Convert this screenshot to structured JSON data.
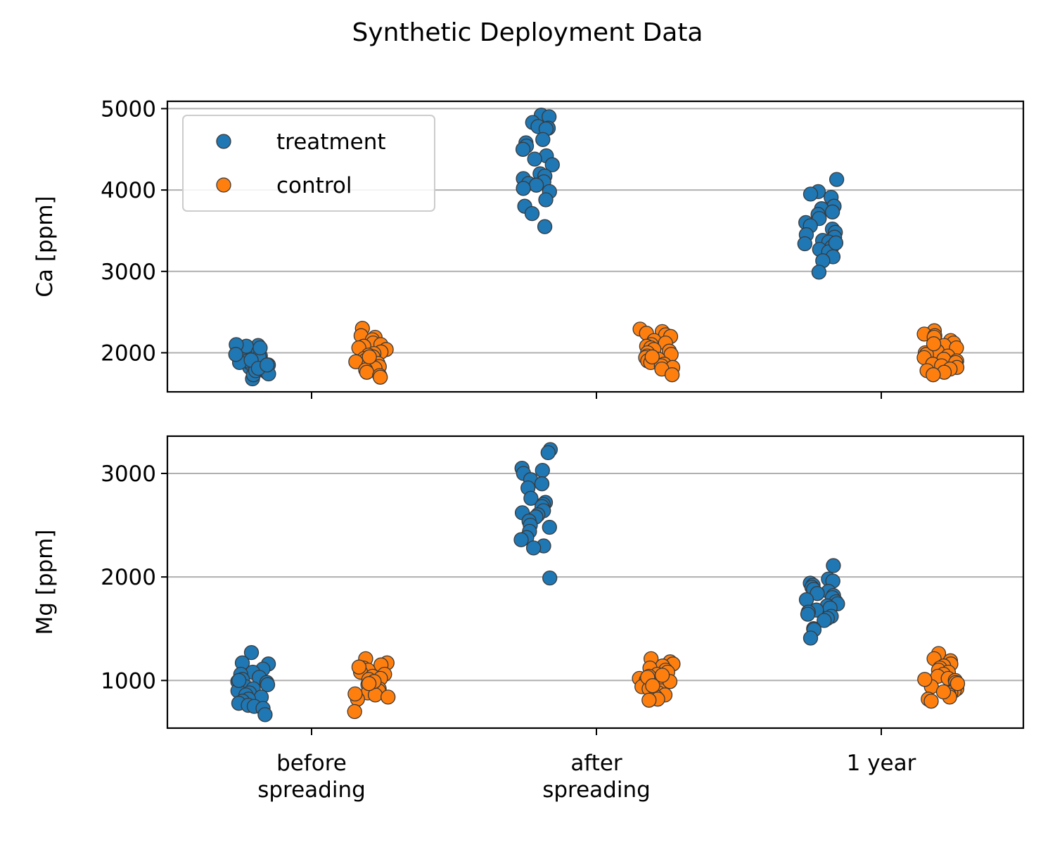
{
  "figure": {
    "title": "Synthetic Deployment Data"
  },
  "colors": {
    "treatment": "#1f77b4",
    "control": "#ff7f0e",
    "edge": "#3a3a3a",
    "grid": "#b0b0b0",
    "axes": "#000000",
    "legend_border": "#cccccc"
  },
  "legend": {
    "location": "upper-left of top panel",
    "entries": [
      {
        "key": "treatment",
        "label": "treatment"
      },
      {
        "key": "control",
        "label": "control"
      }
    ]
  },
  "categories": [
    {
      "label_lines": [
        "before",
        "spreading"
      ]
    },
    {
      "label_lines": [
        "after",
        "spreading"
      ]
    },
    {
      "label_lines": [
        "1 year"
      ]
    }
  ],
  "chart_data": [
    {
      "type": "scatter",
      "subtype": "strip",
      "ylabel": "Ca [ppm]",
      "ylim": [
        1520,
        5090
      ],
      "yticks": [
        {
          "value": 2000,
          "label": "2000"
        },
        {
          "value": 3000,
          "label": "3000"
        },
        {
          "value": 4000,
          "label": "4000"
        },
        {
          "value": 5000,
          "label": "5000"
        }
      ],
      "grid": "y",
      "shared_x": true,
      "series": [
        {
          "name": "treatment",
          "groups": [
            [
              1820,
              1960,
              1680,
              2040,
              2050,
              1760,
              1940,
              2090,
              1870,
              1990,
              1730,
              2080,
              1900,
              1850,
              2010,
              1780,
              1950,
              2100,
              1880,
              1740,
              1980,
              2060,
              1910,
              1810,
              1850
            ],
            [
              4920,
              4900,
              4830,
              4780,
              4760,
              4750,
              4620,
              4580,
              4540,
              4500,
              4420,
              4380,
              4310,
              4200,
              4170,
              4140,
              4100,
              4080,
              4060,
              4020,
              3980,
              3880,
              3800,
              3710,
              3550
            ],
            [
              4130,
              3980,
              3950,
              3910,
              3800,
              3770,
              3730,
              3700,
              3650,
              3600,
              3560,
              3520,
              3480,
              3450,
              3420,
              3380,
              3360,
              3340,
              3300,
              3270,
              3240,
              3180,
              3130,
              3350,
              2990
            ]
          ]
        },
        {
          "name": "control",
          "groups": [
            [
              2300,
              2210,
              2190,
              2160,
              2120,
              2100,
              2080,
              2060,
              2040,
              2010,
              1990,
              1970,
              1950,
              1930,
              1910,
              1890,
              1870,
              1850,
              1830,
              1810,
              1790,
              1760,
              1720,
              1700,
              1950
            ],
            [
              2290,
              2260,
              2240,
              2220,
              2200,
              2150,
              2120,
              2100,
              2080,
              2060,
              2040,
              2020,
              2000,
              1980,
              1960,
              1940,
              1920,
              1900,
              1880,
              1860,
              1840,
              1820,
              1800,
              1730,
              1950
            ],
            [
              2270,
              2230,
              2210,
              2190,
              2150,
              2120,
              2090,
              2060,
              2040,
              2020,
              2000,
              1980,
              1960,
              1940,
              1920,
              1900,
              1880,
              1860,
              1840,
              1820,
              1800,
              1780,
              1760,
              1730,
              2110
            ]
          ]
        }
      ]
    },
    {
      "type": "scatter",
      "subtype": "strip",
      "ylabel": "Mg [ppm]",
      "ylim": [
        540,
        3360
      ],
      "yticks": [
        {
          "value": 1000,
          "label": "1000"
        },
        {
          "value": 2000,
          "label": "2000"
        },
        {
          "value": 3000,
          "label": "3000"
        }
      ],
      "grid": "y",
      "shared_x": true,
      "series": [
        {
          "name": "treatment",
          "groups": [
            [
              1270,
              1170,
              1160,
              1110,
              1080,
              1060,
              1030,
              1010,
              990,
              980,
              960,
              940,
              920,
              900,
              880,
              860,
              840,
              820,
              800,
              780,
              760,
              750,
              730,
              670,
              1000
            ],
            [
              3230,
              3200,
              3050,
              3030,
              3000,
              2940,
              2900,
              2860,
              2760,
              2720,
              2700,
              2680,
              2640,
              2620,
              2600,
              2580,
              2540,
              2500,
              2480,
              2440,
              2380,
              2360,
              2300,
              2280,
              1990
            ],
            [
              2110,
              1980,
              1960,
              1940,
              1920,
              1900,
              1880,
              1860,
              1840,
              1820,
              1800,
              1780,
              1760,
              1740,
              1720,
              1700,
              1680,
              1660,
              1640,
              1620,
              1600,
              1580,
              1500,
              1490,
              1410
            ]
          ]
        },
        {
          "name": "control",
          "groups": [
            [
              1210,
              1170,
              1150,
              1120,
              1100,
              1080,
              1060,
              1040,
              1020,
              1000,
              980,
              960,
              940,
              920,
              900,
              880,
              860,
              840,
              820,
              1010,
              990,
              970,
              870,
              700,
              1130
            ],
            [
              1210,
              1180,
              1160,
              1140,
              1120,
              1100,
              1080,
              1060,
              1040,
              1020,
              1000,
              980,
              960,
              940,
              920,
              900,
              880,
              860,
              840,
              820,
              810,
              1030,
              950,
              990,
              1050
            ],
            [
              1260,
              1210,
              1190,
              1160,
              1140,
              1120,
              1100,
              1080,
              1060,
              1040,
              1020,
              1000,
              980,
              960,
              940,
              920,
              900,
              880,
              860,
              840,
              820,
              800,
              1010,
              970,
              890
            ]
          ]
        }
      ]
    }
  ]
}
